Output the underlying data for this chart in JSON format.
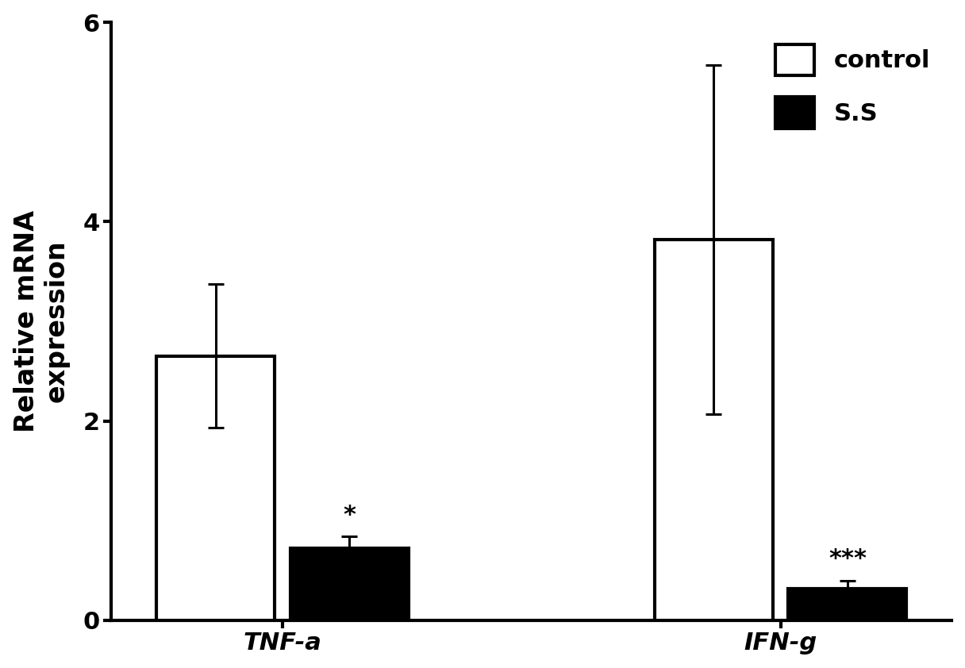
{
  "groups": [
    "TNF-a",
    "IFN-g"
  ],
  "control_values": [
    2.65,
    3.82
  ],
  "control_errors": [
    0.72,
    1.75
  ],
  "ss_values": [
    0.72,
    0.32
  ],
  "ss_errors": [
    0.12,
    0.08
  ],
  "ss_annotations": [
    "*",
    "***"
  ],
  "ylabel": "Relative mRNA\nexpression",
  "ylim": [
    0,
    6
  ],
  "yticks": [
    0,
    2,
    4,
    6
  ],
  "bar_width": 0.38,
  "group_centers": [
    1.0,
    2.6
  ],
  "bar_gap": 0.05,
  "control_color": "#ffffff",
  "ss_color": "#000000",
  "edge_color": "#000000",
  "background_color": "#ffffff",
  "legend_labels": [
    "control",
    "S.S"
  ],
  "bar_linewidth": 3.0,
  "error_linewidth": 2.2,
  "capsize": 7,
  "annotation_fontsize": 22,
  "tick_fontsize": 22,
  "label_fontsize": 24,
  "legend_fontsize": 22
}
